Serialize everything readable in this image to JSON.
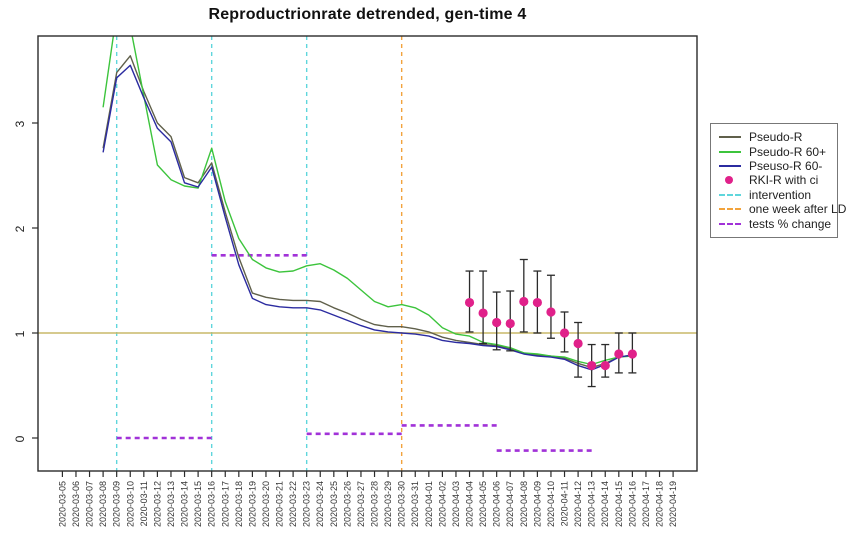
{
  "title": "Reproductrionrate detrended, gen-time 4",
  "colors": {
    "pseudo_r": "#60604b",
    "pseudo_r_60plus": "#3cc43c",
    "pseudo_r_60minus": "#2b2ba0",
    "rki_point": "#e0218a",
    "intervention": "#5fd6dc",
    "one_week_after_ld": "#f2a33c",
    "tests_change": "#a132d8",
    "reference_gold": "#c9b968",
    "axis": "#2b2b2b",
    "errorbar": "#2b2b2b"
  },
  "chart_data": {
    "type": "line",
    "title": "Reproductrionrate detrended, gen-time 4",
    "xlabel": "",
    "ylabel": "",
    "grid": false,
    "legend_position": "right-outside",
    "ylim": [
      -0.32,
      3.85
    ],
    "yticks": [
      0,
      1,
      2,
      3
    ],
    "reference_line_y": 1,
    "x": [
      "2020-03-05",
      "2020-03-06",
      "2020-03-07",
      "2020-03-08",
      "2020-03-09",
      "2020-03-10",
      "2020-03-11",
      "2020-03-12",
      "2020-03-13",
      "2020-03-14",
      "2020-03-15",
      "2020-03-16",
      "2020-03-17",
      "2020-03-18",
      "2020-03-19",
      "2020-03-20",
      "2020-03-21",
      "2020-03-22",
      "2020-03-23",
      "2020-03-24",
      "2020-03-25",
      "2020-03-26",
      "2020-03-27",
      "2020-03-28",
      "2020-03-29",
      "2020-03-30",
      "2020-03-31",
      "2020-04-01",
      "2020-04-02",
      "2020-04-03",
      "2020-04-04",
      "2020-04-05",
      "2020-04-06",
      "2020-04-07",
      "2020-04-08",
      "2020-04-09",
      "2020-04-10",
      "2020-04-11",
      "2020-04-12",
      "2020-04-13",
      "2020-04-14",
      "2020-04-15",
      "2020-04-16",
      "2020-04-17",
      "2020-04-18",
      "2020-04-19"
    ],
    "series": [
      {
        "name": "Pseudo-R",
        "color": "#60604b",
        "start": "2020-03-08",
        "values": [
          2.76,
          3.48,
          3.64,
          3.3,
          3.0,
          2.87,
          2.48,
          2.43,
          2.62,
          2.15,
          1.72,
          1.38,
          1.34,
          1.32,
          1.31,
          1.31,
          1.3,
          1.24,
          1.19,
          1.13,
          1.08,
          1.06,
          1.06,
          1.04,
          1.01,
          0.96,
          0.93,
          0.91,
          0.89,
          0.88,
          0.85,
          0.81,
          0.79,
          0.78,
          0.76,
          0.71,
          0.67,
          0.71,
          0.77,
          0.79
        ]
      },
      {
        "name": "Pseudo-R 60+",
        "color": "#3cc43c",
        "start": "2020-03-08",
        "values": [
          3.15,
          4.05,
          3.92,
          3.26,
          2.6,
          2.46,
          2.4,
          2.38,
          2.76,
          2.25,
          1.9,
          1.7,
          1.62,
          1.58,
          1.59,
          1.64,
          1.66,
          1.6,
          1.52,
          1.41,
          1.3,
          1.25,
          1.27,
          1.24,
          1.17,
          1.05,
          0.99,
          0.97,
          0.91,
          0.89,
          0.86,
          0.81,
          0.8,
          0.78,
          0.77,
          0.73,
          0.7,
          0.74,
          0.77,
          0.78
        ]
      },
      {
        "name": "Pseuso-R 60-",
        "color": "#2b2ba0",
        "start": "2020-03-08",
        "values": [
          2.72,
          3.43,
          3.55,
          3.24,
          2.95,
          2.82,
          2.43,
          2.39,
          2.58,
          2.1,
          1.65,
          1.33,
          1.27,
          1.25,
          1.24,
          1.24,
          1.22,
          1.17,
          1.12,
          1.07,
          1.03,
          1.01,
          1.0,
          0.99,
          0.97,
          0.93,
          0.91,
          0.9,
          0.88,
          0.87,
          0.84,
          0.8,
          0.78,
          0.77,
          0.75,
          0.69,
          0.65,
          0.7,
          0.77,
          0.79
        ]
      }
    ],
    "points": {
      "name": "RKI-R with ci",
      "color": "#e0218a",
      "data": [
        {
          "date": "2020-04-04",
          "r": 1.29,
          "lo": 1.01,
          "hi": 1.59
        },
        {
          "date": "2020-04-05",
          "r": 1.19,
          "lo": 0.9,
          "hi": 1.59
        },
        {
          "date": "2020-04-06",
          "r": 1.1,
          "lo": 0.84,
          "hi": 1.39
        },
        {
          "date": "2020-04-07",
          "r": 1.09,
          "lo": 0.83,
          "hi": 1.4
        },
        {
          "date": "2020-04-08",
          "r": 1.3,
          "lo": 1.01,
          "hi": 1.7
        },
        {
          "date": "2020-04-09",
          "r": 1.29,
          "lo": 1.0,
          "hi": 1.59
        },
        {
          "date": "2020-04-10",
          "r": 1.2,
          "lo": 0.95,
          "hi": 1.55
        },
        {
          "date": "2020-04-11",
          "r": 1.0,
          "lo": 0.82,
          "hi": 1.2
        },
        {
          "date": "2020-04-12",
          "r": 0.9,
          "lo": 0.58,
          "hi": 1.1
        },
        {
          "date": "2020-04-13",
          "r": 0.69,
          "lo": 0.49,
          "hi": 0.89
        },
        {
          "date": "2020-04-14",
          "r": 0.69,
          "lo": 0.58,
          "hi": 0.89
        },
        {
          "date": "2020-04-15",
          "r": 0.8,
          "lo": 0.62,
          "hi": 1.0
        },
        {
          "date": "2020-04-16",
          "r": 0.8,
          "lo": 0.62,
          "hi": 1.0
        }
      ]
    },
    "vlines": [
      {
        "date": "2020-03-09",
        "color": "#5fd6dc",
        "meaning": "intervention"
      },
      {
        "date": "2020-03-16",
        "color": "#5fd6dc",
        "meaning": "intervention"
      },
      {
        "date": "2020-03-23",
        "color": "#5fd6dc",
        "meaning": "intervention"
      },
      {
        "date": "2020-03-30",
        "color": "#f2a33c",
        "meaning": "one week after LD"
      }
    ],
    "hsegments": [
      {
        "from": "2020-03-09",
        "to": "2020-03-16",
        "y": 0.0
      },
      {
        "from": "2020-03-16",
        "to": "2020-03-23",
        "y": 1.74
      },
      {
        "from": "2020-03-23",
        "to": "2020-03-30",
        "y": 0.04
      },
      {
        "from": "2020-03-30",
        "to": "2020-04-06",
        "y": 0.12
      },
      {
        "from": "2020-04-06",
        "to": "2020-04-13",
        "y": -0.12
      }
    ],
    "legend": [
      {
        "label": "Pseudo-R",
        "type": "line",
        "color": "#60604b"
      },
      {
        "label": "Pseudo-R 60+",
        "type": "line",
        "color": "#3cc43c"
      },
      {
        "label": "Pseuso-R 60-",
        "type": "line",
        "color": "#2b2ba0"
      },
      {
        "label": "RKI-R with ci",
        "type": "dot",
        "color": "#e0218a"
      },
      {
        "label": "intervention",
        "type": "dash",
        "color": "#5fd6dc"
      },
      {
        "label": "one week after LD",
        "type": "dash",
        "color": "#f2a33c"
      },
      {
        "label": "tests % change",
        "type": "dash",
        "color": "#a132d8"
      }
    ]
  }
}
